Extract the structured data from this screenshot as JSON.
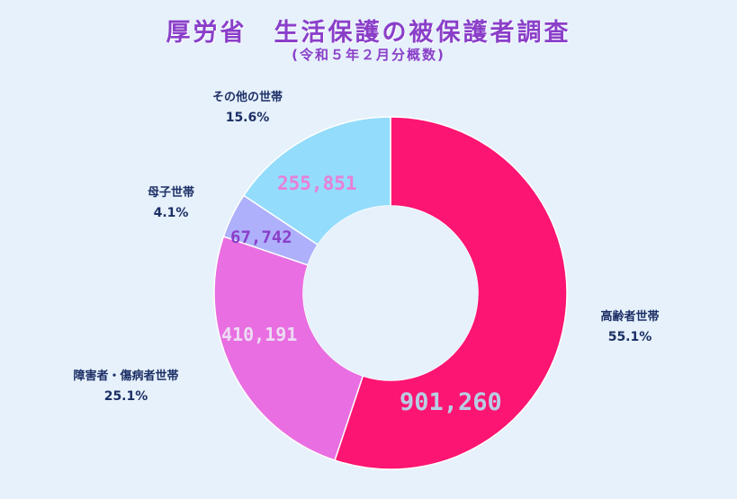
{
  "title": "厚労省　生活保護の被保護者調査",
  "subtitle": "(令和５年２月分概数)",
  "colors": {
    "background": "#e6f1fb",
    "title": "#8a3fc9",
    "label": "#1c2f66"
  },
  "chart_data": {
    "type": "pie",
    "donut": true,
    "start": "12-o'clock",
    "direction": "clockwise",
    "slices": [
      {
        "name": "高齢者世帯",
        "value": 901260,
        "value_label": "901,260",
        "percent_label": "55.1%",
        "color": "#fc1572",
        "value_color": "#b8cde4"
      },
      {
        "name": "障害者・傷病者世帯",
        "value": 410191,
        "value_label": "410,191",
        "percent_label": "25.1%",
        "color": "#e96ee1",
        "value_color": "#ecdcf3"
      },
      {
        "name": "母子世帯",
        "value": 67742,
        "value_label": "67,742",
        "percent_label": "4.1%",
        "color": "#aeb0fb",
        "value_color": "#8a3fc9"
      },
      {
        "name": "その他の世帯",
        "value": 255851,
        "value_label": "255,851",
        "percent_label": "15.6%",
        "color": "#94dcfc",
        "value_color": "#e97fd6"
      }
    ]
  }
}
